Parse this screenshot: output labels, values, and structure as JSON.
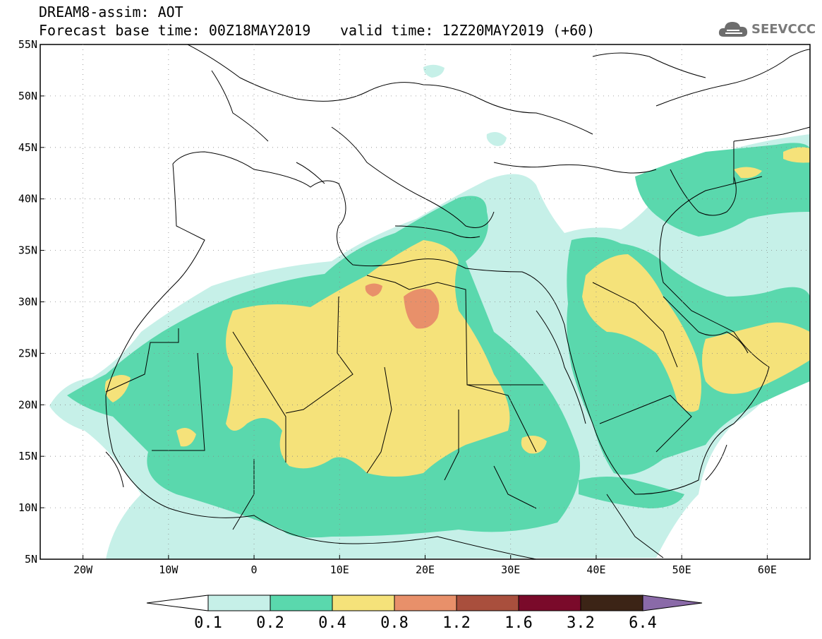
{
  "header": {
    "title": "DREAM8-assim: AOT",
    "base_time": "Forecast base time: 00Z18MAY2019",
    "valid_time": "valid time: 12Z20MAY2019 (+60)",
    "logo_text": "SEEVCCC"
  },
  "map": {
    "lat_labels": [
      "55N",
      "50N",
      "45N",
      "40N",
      "35N",
      "30N",
      "25N",
      "20N",
      "15N",
      "10N",
      "5N"
    ],
    "lon_labels": [
      "20W",
      "10W",
      "0",
      "10E",
      "20E",
      "30E",
      "40E",
      "50E",
      "60E"
    ],
    "extent": {
      "lon_min": -25,
      "lon_max": 65,
      "lat_min": 5,
      "lat_max": 55
    }
  },
  "colorbar": {
    "labels": [
      "0.1",
      "0.2",
      "0.4",
      "0.8",
      "1.2",
      "1.6",
      "3.2",
      "6.4"
    ],
    "colors": [
      "#ffffff",
      "#c6f0e8",
      "#5ad8ad",
      "#f5e27a",
      "#e8906a",
      "#a94f3d",
      "#7a0a2a",
      "#3c2416",
      "#8a6aa8"
    ]
  }
}
